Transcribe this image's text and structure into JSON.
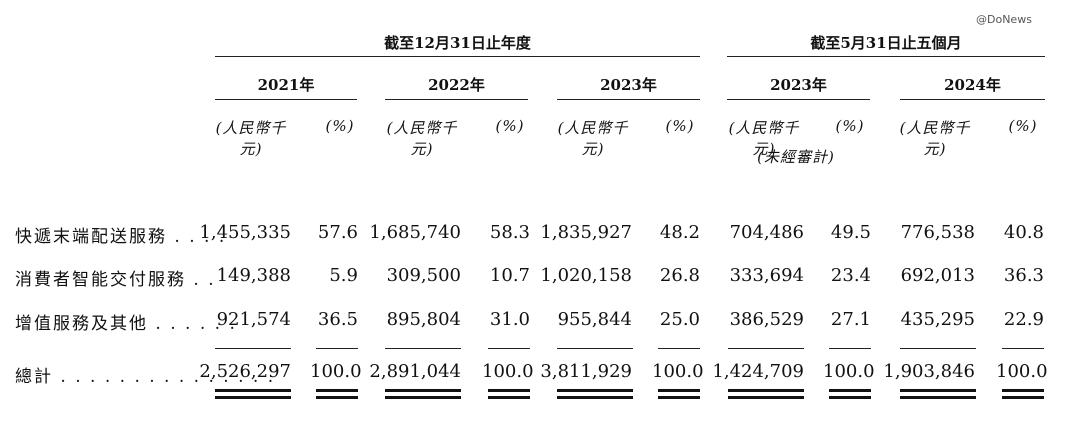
{
  "watermark": "@DoNews",
  "header": {
    "group1": "截至12月31日止年度",
    "group2": "截至5月31日止五個月",
    "years": [
      "2021年",
      "2022年",
      "2023年",
      "2023年",
      "2024年"
    ],
    "unit_amount": "(人民幣千元)",
    "unit_pct": "(%)",
    "unaudited": "(未經審計)"
  },
  "rows": [
    {
      "label": "快遞末端配送服務 . . . .",
      "amounts": [
        "1,455,335",
        "1,685,740",
        "1,835,927",
        "704,486",
        "776,538"
      ],
      "pcts": [
        "57.6",
        "58.3",
        "48.2",
        "49.5",
        "40.8"
      ]
    },
    {
      "label": "消費者智能交付服務 . .",
      "amounts": [
        "149,388",
        "309,500",
        "1,020,158",
        "333,694",
        "692,013"
      ],
      "pcts": [
        "5.9",
        "10.7",
        "26.8",
        "23.4",
        "36.3"
      ]
    },
    {
      "label": "增值服務及其他 . . . . . .",
      "amounts": [
        "921,574",
        "895,804",
        "955,844",
        "386,529",
        "435,295"
      ],
      "pcts": [
        "36.5",
        "31.0",
        "25.0",
        "27.1",
        "22.9"
      ]
    },
    {
      "label": "總計 . . . . . . . . . . . . . . .",
      "amounts": [
        "2,526,297",
        "2,891,044",
        "3,811,929",
        "1,424,709",
        "1,903,846"
      ],
      "pcts": [
        "100.0",
        "100.0",
        "100.0",
        "100.0",
        "100.0"
      ]
    }
  ]
}
